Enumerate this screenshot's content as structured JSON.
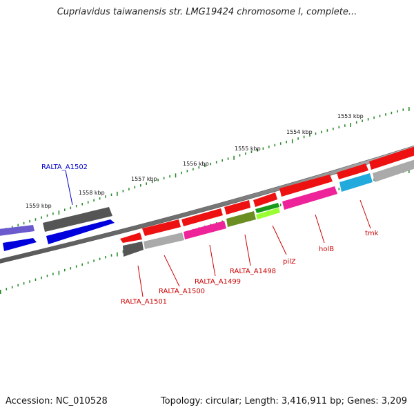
{
  "title": "Cupriavidus taiwanensis str. LMG19424 chromosome I, complete...",
  "footer": {
    "accession": "Accession: NC_010528",
    "topology": "Topology: circular; Length: 3,416,911 bp; Genes: 3,209"
  },
  "scale_labels": [
    "1553 kbp",
    "1554 kbp",
    "1555 kbp",
    "1556 kbp",
    "1557 kbp",
    "1558 kbp",
    "1559 kbp"
  ],
  "gene_labels": [
    {
      "name": "RALTA_A1502",
      "color": "#0000cc"
    },
    {
      "name": "RALTA_A1501",
      "color": "#cc0000"
    },
    {
      "name": "RALTA_A1500",
      "color": "#cc0000"
    },
    {
      "name": "RALTA_A1499",
      "color": "#cc0000"
    },
    {
      "name": "RALTA_A1498",
      "color": "#cc0000"
    },
    {
      "name": "pilZ",
      "color": "#cc0000"
    },
    {
      "name": "holB",
      "color": "#cc0000"
    },
    {
      "name": "tmk",
      "color": "#cc0000"
    }
  ],
  "colors": {
    "backbone": "#777777",
    "ticks": "#2a8a2a",
    "red": "#ee1111",
    "magenta": "#ee2299",
    "grey": "#aaaaaa",
    "darkgrey": "#555555",
    "olive": "#6b8e23",
    "green": "#1a9a1a",
    "yellowgreen": "#99ff33",
    "cyan": "#22aadd",
    "blue": "#0000dd",
    "slateblue": "#6a5acd"
  }
}
